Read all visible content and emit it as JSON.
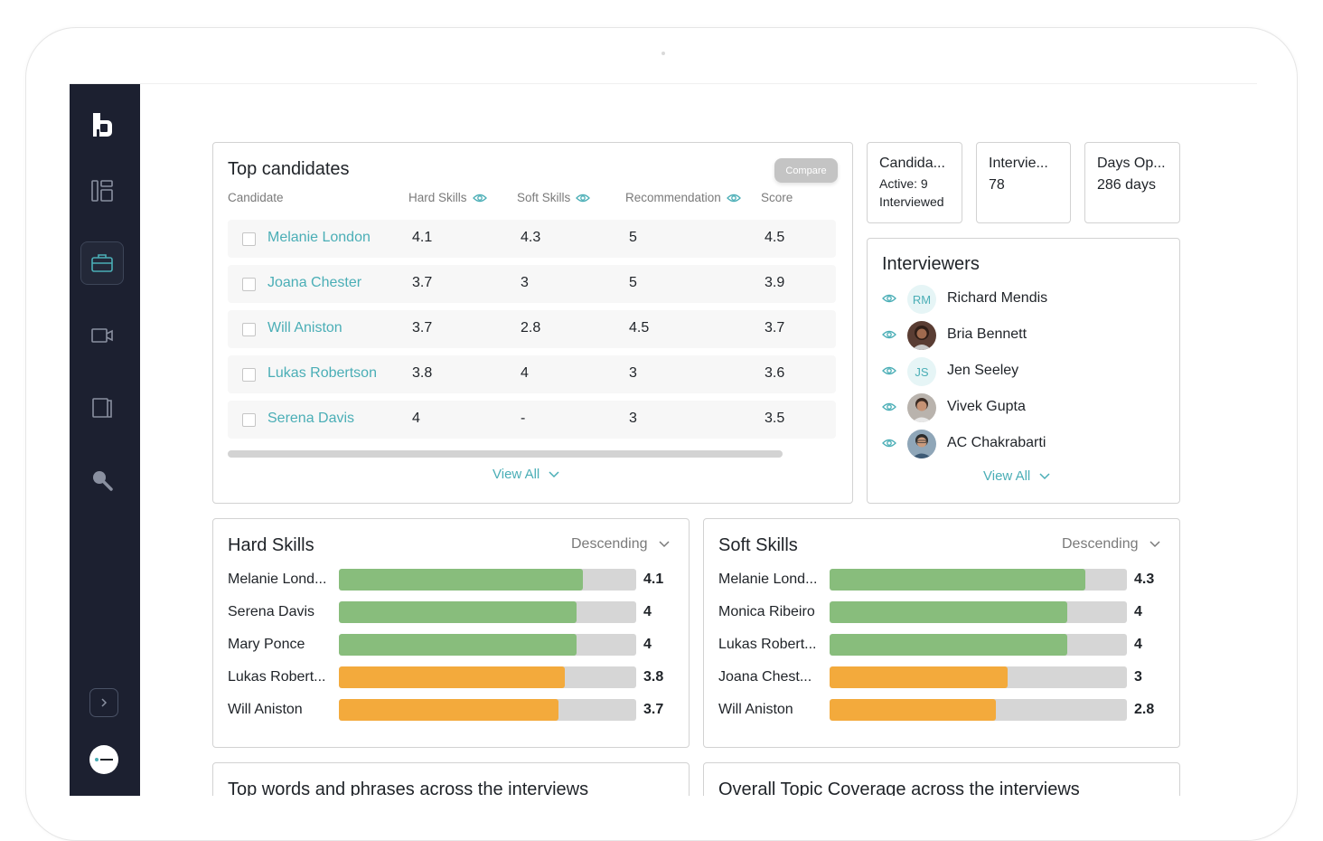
{
  "top_candidates": {
    "title": "Top candidates",
    "compare_label": "Compare",
    "headers": {
      "candidate": "Candidate",
      "hard": "Hard Skills",
      "soft": "Soft Skills",
      "recommendation": "Recommendation",
      "score": "Score"
    },
    "rows": [
      {
        "name": "Melanie London",
        "hard": "4.1",
        "soft": "4.3",
        "rec": "5",
        "score": "4.5"
      },
      {
        "name": "Joana Chester",
        "hard": "3.7",
        "soft": "3",
        "rec": "5",
        "score": "3.9"
      },
      {
        "name": "Will Aniston",
        "hard": "3.7",
        "soft": "2.8",
        "rec": "4.5",
        "score": "3.7"
      },
      {
        "name": "Lukas Robertson",
        "hard": "3.8",
        "soft": "4",
        "rec": "3",
        "score": "3.6"
      },
      {
        "name": "Serena Davis",
        "hard": "4",
        "soft": "-",
        "rec": "3",
        "score": "3.5"
      }
    ],
    "view_all": "View All"
  },
  "stats": {
    "candidates": {
      "title": "Candida...",
      "line1": "Active: 9",
      "line2": "Interviewed"
    },
    "interviews": {
      "title": "Intervie...",
      "value": "78"
    },
    "days_open": {
      "title": "Days Op...",
      "value": "286 days"
    }
  },
  "interviewers": {
    "title": "Interviewers",
    "people": [
      {
        "name": "Richard Mendis",
        "initials": "RM"
      },
      {
        "name": "Bria Bennett",
        "initials": ""
      },
      {
        "name": "Jen Seeley",
        "initials": "JS"
      },
      {
        "name": "Vivek Gupta",
        "initials": ""
      },
      {
        "name": "AC Chakrabarti",
        "initials": ""
      }
    ],
    "view_all": "View All"
  },
  "hard_skills": {
    "title": "Hard Skills",
    "sort": "Descending",
    "max": 5,
    "items": [
      {
        "label": "Melanie Lond...",
        "value": 4.1,
        "display": "4.1",
        "color": "#88bd7c"
      },
      {
        "label": "Serena Davis",
        "value": 4,
        "display": "4",
        "color": "#88bd7c"
      },
      {
        "label": "Mary Ponce",
        "value": 4,
        "display": "4",
        "color": "#88bd7c"
      },
      {
        "label": "Lukas Robert...",
        "value": 3.8,
        "display": "3.8",
        "color": "#f3aa3c"
      },
      {
        "label": "Will Aniston",
        "value": 3.7,
        "display": "3.7",
        "color": "#f3aa3c"
      }
    ]
  },
  "soft_skills": {
    "title": "Soft Skills",
    "sort": "Descending",
    "max": 5,
    "items": [
      {
        "label": "Melanie Lond...",
        "value": 4.3,
        "display": "4.3",
        "color": "#88bd7c"
      },
      {
        "label": "Monica Ribeiro",
        "value": 4,
        "display": "4",
        "color": "#88bd7c"
      },
      {
        "label": "Lukas Robert...",
        "value": 4,
        "display": "4",
        "color": "#88bd7c"
      },
      {
        "label": "Joana Chest...",
        "value": 3,
        "display": "3",
        "color": "#f3aa3c"
      },
      {
        "label": "Will Aniston",
        "value": 2.8,
        "display": "2.8",
        "color": "#f3aa3c"
      }
    ]
  },
  "top_words": {
    "title": "Top words and phrases across the interviews"
  },
  "topic_coverage": {
    "title": "Overall Topic Coverage across the interviews"
  },
  "colors": {
    "accent": "#4aaeb6",
    "sidebar": "#1c2030",
    "good": "#88bd7c",
    "warn": "#f3aa3c"
  }
}
